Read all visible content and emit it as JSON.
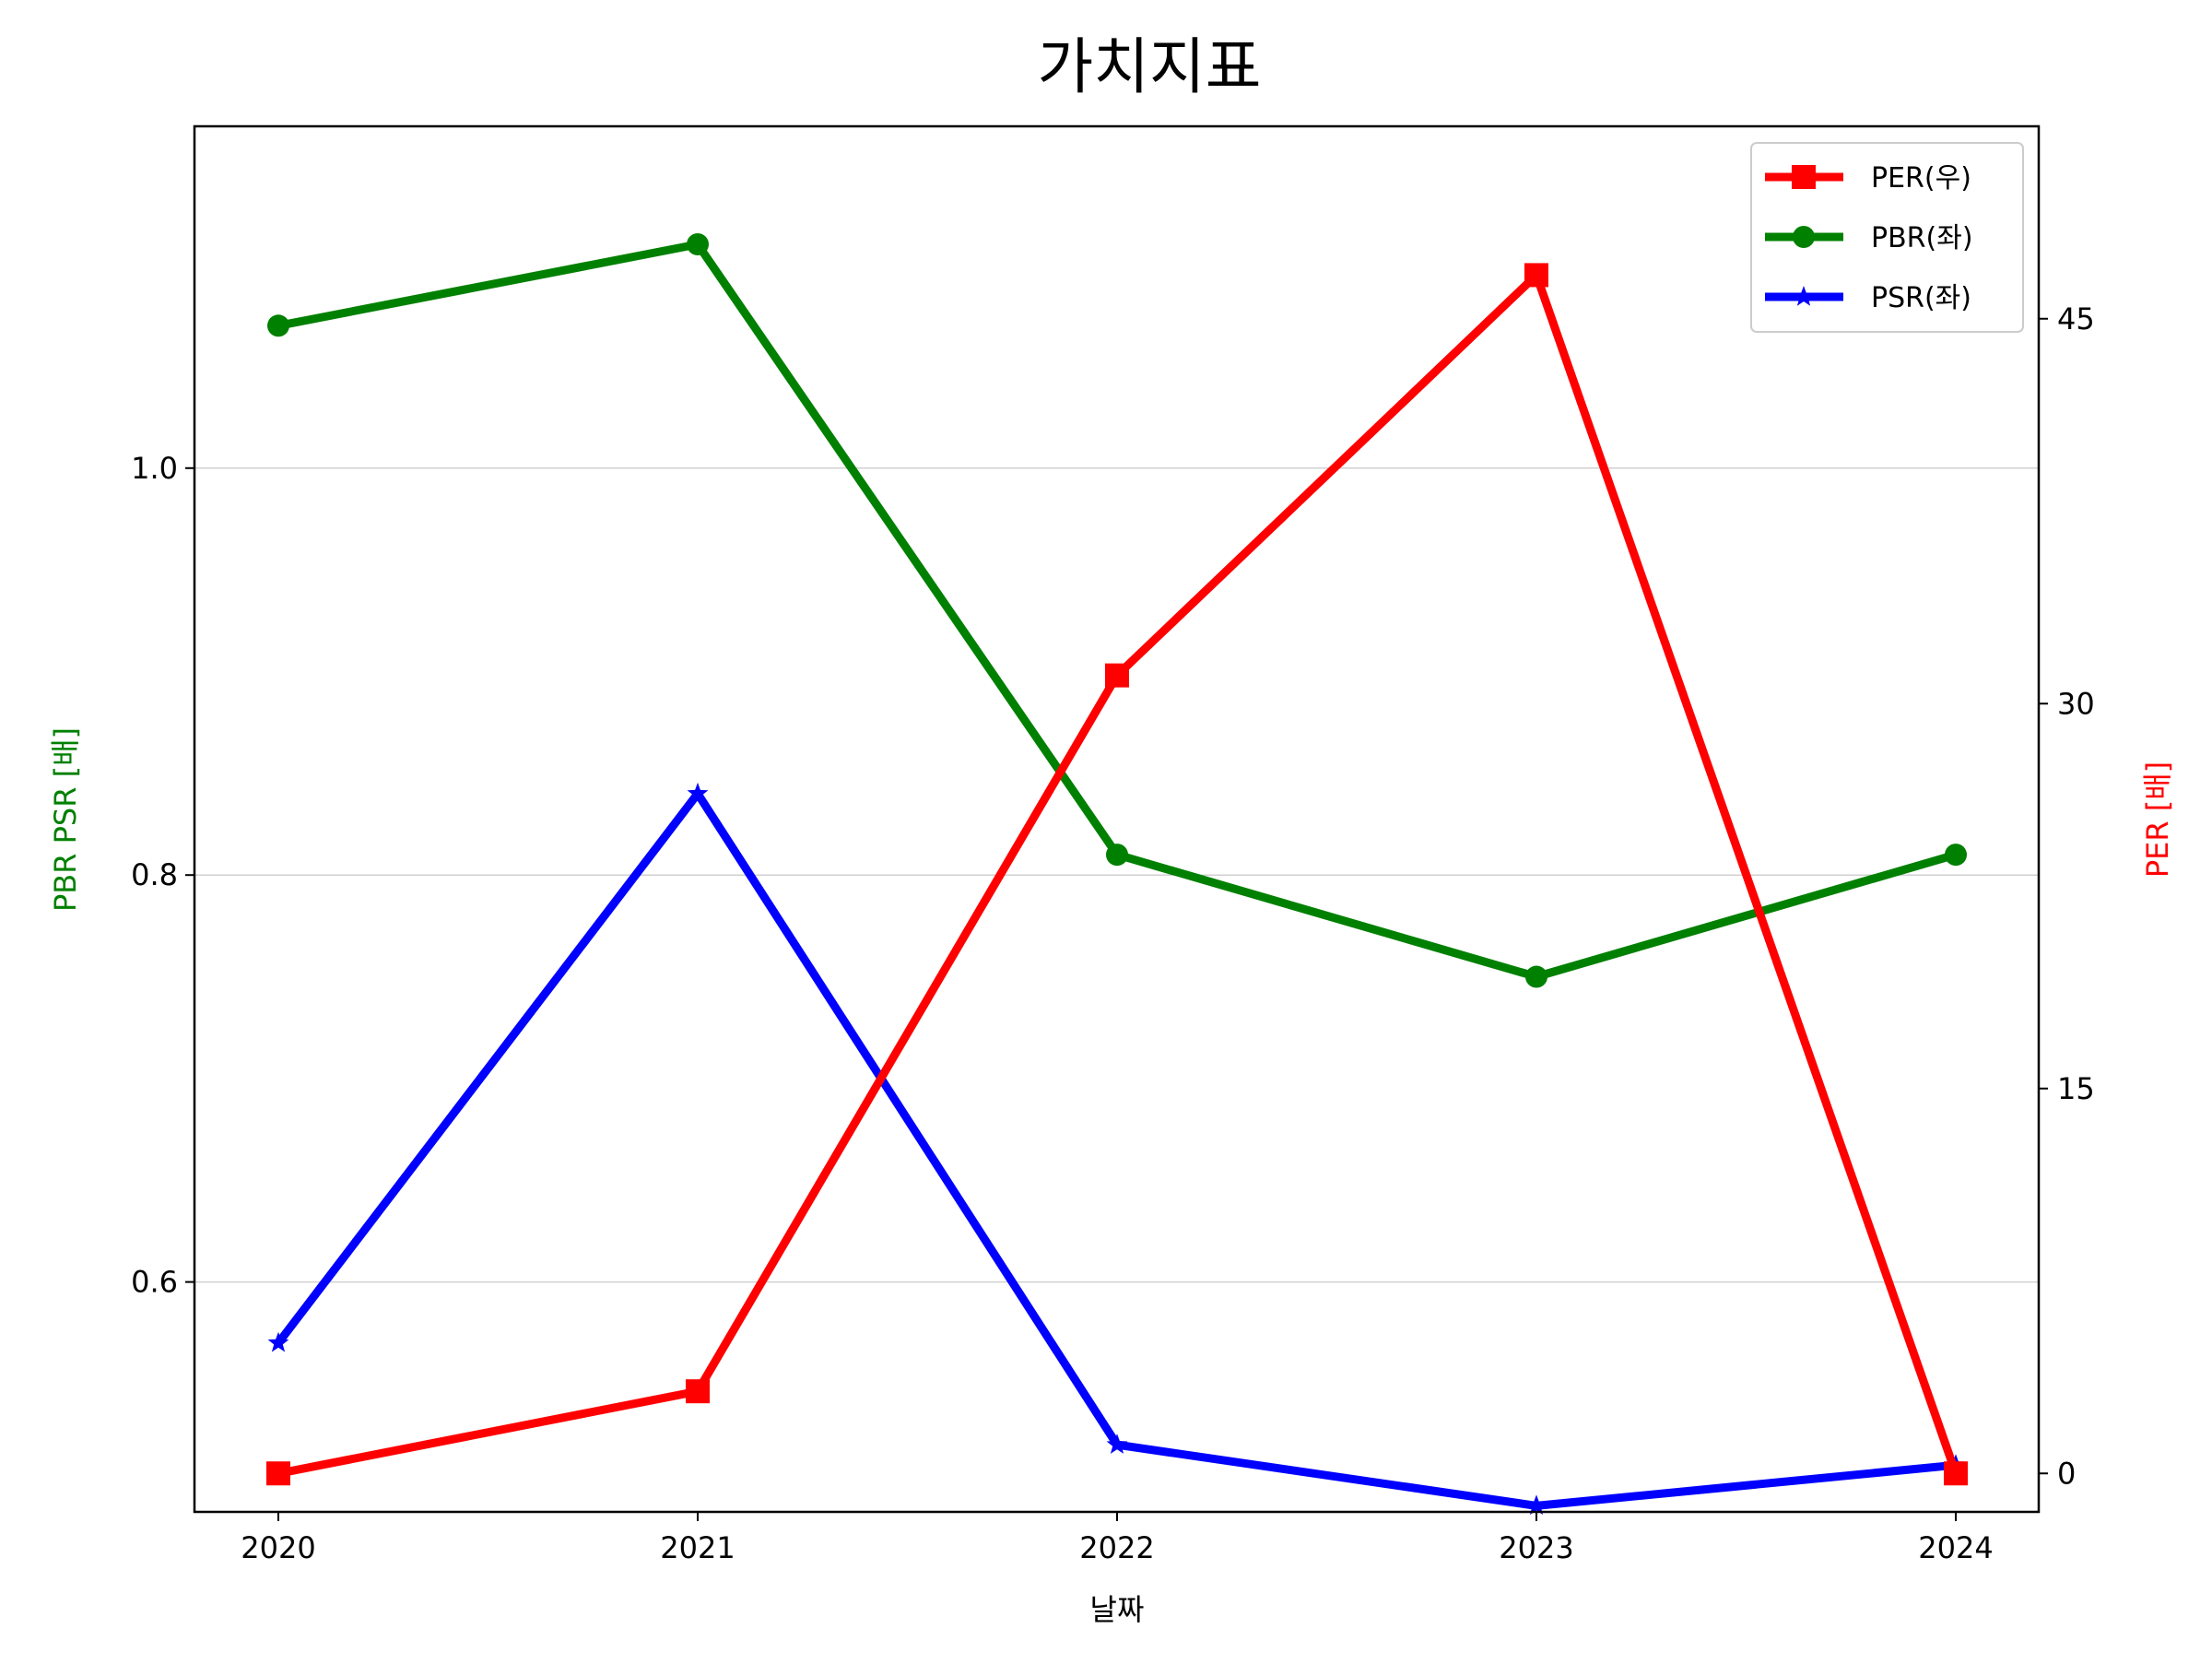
{
  "chart_data": {
    "type": "line",
    "title": "가치지표",
    "xlabel": "날짜",
    "ylabel_left": "PBR PSR [배]",
    "ylabel_right": "PER [배]",
    "x": [
      "2020",
      "2021",
      "2022",
      "2023",
      "2024"
    ],
    "ylim_left": [
      0.487,
      1.168
    ],
    "ylim_right": [
      -1.5,
      52.5
    ],
    "yticks_left": [
      "0.6",
      "0.8",
      "1.0"
    ],
    "yticks_right": [
      "0",
      "15",
      "30",
      "45"
    ],
    "grid": "horizontal, left axis",
    "legend": "top-right",
    "series": [
      {
        "name": "PER(우)",
        "axis": "right",
        "color": "#ff0000",
        "marker": "square",
        "values": [
          0,
          3.2,
          31.1,
          46.7,
          0
        ]
      },
      {
        "name": "PBR(좌)",
        "axis": "left",
        "color": "#008000",
        "marker": "circle",
        "values": [
          1.07,
          1.11,
          0.81,
          0.75,
          0.81
        ]
      },
      {
        "name": "PSR(좌)",
        "axis": "left",
        "color": "#0000ff",
        "marker": "star",
        "values": [
          0.57,
          0.84,
          0.52,
          0.49,
          0.51
        ]
      }
    ]
  }
}
